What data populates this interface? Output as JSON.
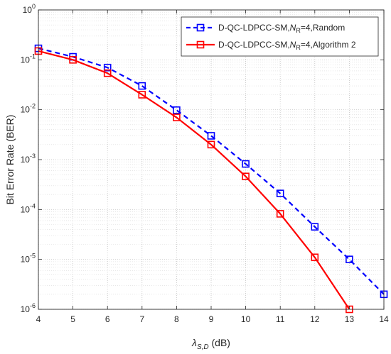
{
  "chart_data": {
    "type": "line",
    "title": "",
    "xlabel": {
      "symbol": "λ",
      "subscript": "S,D",
      "unit": " (dB)"
    },
    "ylabel": "Bit Error Rate (BER)",
    "x_ticks": [
      "4",
      "5",
      "6",
      "7",
      "8",
      "9",
      "10",
      "11",
      "12",
      "13",
      "14"
    ],
    "xlim": [
      4,
      14
    ],
    "yscale": "log",
    "ylim": [
      1e-06,
      1
    ],
    "y_ticks": [
      {
        "value": 1e-06,
        "base": "10",
        "exp": "-6"
      },
      {
        "value": 1e-05,
        "base": "10",
        "exp": "-5"
      },
      {
        "value": 0.0001,
        "base": "10",
        "exp": "-4"
      },
      {
        "value": 0.001,
        "base": "10",
        "exp": "-3"
      },
      {
        "value": 0.01,
        "base": "10",
        "exp": "-2"
      },
      {
        "value": 0.1,
        "base": "10",
        "exp": "-1"
      },
      {
        "value": 1,
        "base": "10",
        "exp": "0"
      }
    ],
    "grid": true,
    "minor_grid": true,
    "legend_position": "top-right",
    "series": [
      {
        "name": "D-QC-LDPCC-SM,N_R=4,Random",
        "legend": {
          "prefix": "D-QC-LDPCC-SM,",
          "symbol": "N",
          "subscript": "R",
          "suffix": "=4,Random"
        },
        "color": "#0000ff",
        "line_style": "dashed",
        "marker": "square",
        "x": [
          4,
          5,
          6,
          7,
          8,
          9,
          10,
          11,
          12,
          13,
          14
        ],
        "y": [
          0.17,
          0.115,
          0.07,
          0.03,
          0.0098,
          0.003,
          0.00082,
          0.00021,
          4.5e-05,
          1e-05,
          2e-06
        ]
      },
      {
        "name": "D-QC-LDPCC-SM,N_R=4,Algorithm 2",
        "legend": {
          "prefix": "D-QC-LDPCC-SM,",
          "symbol": "N",
          "subscript": "R",
          "suffix": "=4,Algorithm 2"
        },
        "color": "#ff0000",
        "line_style": "solid",
        "marker": "square",
        "x": [
          4,
          5,
          6,
          7,
          8,
          9,
          10,
          11,
          12,
          13
        ],
        "y": [
          0.15,
          0.1,
          0.054,
          0.02,
          0.007,
          0.002,
          0.00046,
          8.2e-05,
          1.1e-05,
          1e-06
        ]
      }
    ]
  }
}
